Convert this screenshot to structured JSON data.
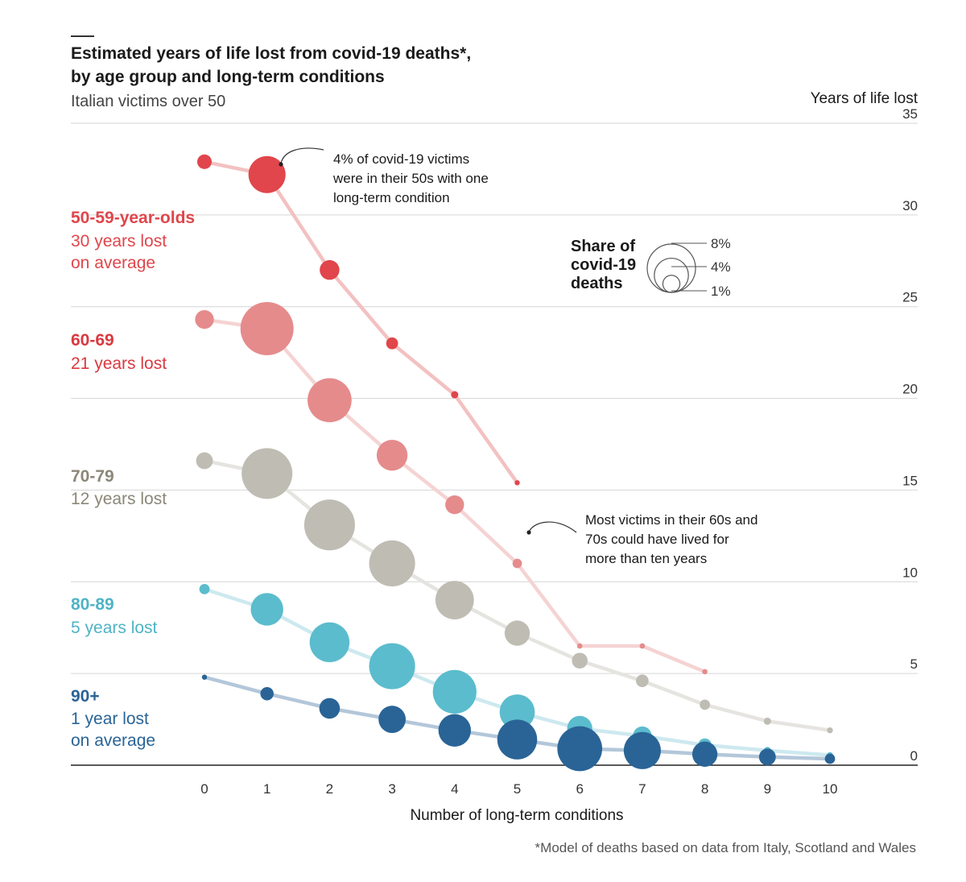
{
  "chart_data": {
    "type": "scatter",
    "title_line1": "Estimated years of life lost from covid-19 deaths*,",
    "title_line2": "by age group and long-term conditions",
    "subtitle": "Italian victims over 50",
    "ylabel": "Years of life lost",
    "xlabel": "Number of long-term conditions",
    "footnote": "*Model of deaths based on data from Italy, Scotland and Wales",
    "ylim": [
      0,
      35
    ],
    "yticks": [
      0,
      5,
      10,
      15,
      20,
      25,
      30,
      35
    ],
    "xticks": [
      0,
      1,
      2,
      3,
      4,
      5,
      6,
      7,
      8,
      9,
      10
    ],
    "grid": "horizontal",
    "series": [
      {
        "name": "50-59-year-olds",
        "note_line1": "30 years lost",
        "note_line2": "on average",
        "color": "#e0464b",
        "line_color": "#f3c1c1",
        "points": [
          {
            "x": 0,
            "y": 32.9,
            "share": 0.6
          },
          {
            "x": 1,
            "y": 32.2,
            "share": 3.9
          },
          {
            "x": 2,
            "y": 27.0,
            "share": 1.1
          },
          {
            "x": 3,
            "y": 23.0,
            "share": 0.4
          },
          {
            "x": 4,
            "y": 20.2,
            "share": 0.15
          },
          {
            "x": 5,
            "y": 15.4,
            "share": 0.03
          }
        ]
      },
      {
        "name": "60-69",
        "note_line1": "21 years lost",
        "note_line2": "",
        "color": "#e58b8c",
        "line_color": "#f5d3d3",
        "points": [
          {
            "x": 0,
            "y": 24.3,
            "share": 1.0
          },
          {
            "x": 1,
            "y": 23.8,
            "share": 8.0
          },
          {
            "x": 2,
            "y": 19.9,
            "share": 5.5
          },
          {
            "x": 3,
            "y": 16.9,
            "share": 2.7
          },
          {
            "x": 4,
            "y": 14.2,
            "share": 1.0
          },
          {
            "x": 5,
            "y": 11.0,
            "share": 0.25
          },
          {
            "x": 6,
            "y": 6.5,
            "share": 0.08
          },
          {
            "x": 7,
            "y": 6.5,
            "share": 0.08
          },
          {
            "x": 8,
            "y": 5.1,
            "share": 0.08
          }
        ]
      },
      {
        "name": "70-79",
        "note_line1": "12 years lost",
        "note_line2": "",
        "color": "#bfbdb3",
        "line_color": "#e5e4e0",
        "points": [
          {
            "x": 0,
            "y": 16.6,
            "share": 0.8
          },
          {
            "x": 1,
            "y": 15.9,
            "share": 7.3
          },
          {
            "x": 2,
            "y": 13.1,
            "share": 7.3
          },
          {
            "x": 3,
            "y": 11.0,
            "share": 6.0
          },
          {
            "x": 4,
            "y": 9.0,
            "share": 4.2
          },
          {
            "x": 5,
            "y": 7.2,
            "share": 1.8
          },
          {
            "x": 6,
            "y": 5.7,
            "share": 0.7
          },
          {
            "x": 7,
            "y": 4.6,
            "share": 0.45
          },
          {
            "x": 8,
            "y": 3.3,
            "share": 0.3
          },
          {
            "x": 9,
            "y": 2.4,
            "share": 0.15
          },
          {
            "x": 10,
            "y": 1.9,
            "share": 0.1
          }
        ]
      },
      {
        "name": "80-89",
        "note_line1": "5 years lost",
        "note_line2": "",
        "color": "#5bbccd",
        "line_color": "#cde9ef",
        "points": [
          {
            "x": 0,
            "y": 9.6,
            "share": 0.3
          },
          {
            "x": 1,
            "y": 8.5,
            "share": 3.0
          },
          {
            "x": 2,
            "y": 6.7,
            "share": 4.5
          },
          {
            "x": 3,
            "y": 5.4,
            "share": 6.0
          },
          {
            "x": 4,
            "y": 4.0,
            "share": 5.4
          },
          {
            "x": 5,
            "y": 2.9,
            "share": 3.5
          },
          {
            "x": 6,
            "y": 2.0,
            "share": 1.8
          },
          {
            "x": 7,
            "y": 1.6,
            "share": 1.0
          },
          {
            "x": 8,
            "y": 1.1,
            "share": 0.5
          },
          {
            "x": 9,
            "y": 0.8,
            "share": 0.15
          },
          {
            "x": 10,
            "y": 0.55,
            "share": 0.1
          }
        ]
      },
      {
        "name": "90+",
        "note_line1": "1 year lost",
        "note_line2": "on average",
        "color": "#2a6496",
        "line_color": "#b3c7da",
        "points": [
          {
            "x": 0,
            "y": 4.8,
            "share": 0.05
          },
          {
            "x": 1,
            "y": 3.9,
            "share": 0.5
          },
          {
            "x": 2,
            "y": 3.1,
            "share": 1.2
          },
          {
            "x": 3,
            "y": 2.5,
            "share": 2.1
          },
          {
            "x": 4,
            "y": 1.9,
            "share": 3.0
          },
          {
            "x": 5,
            "y": 1.4,
            "share": 4.5
          },
          {
            "x": 6,
            "y": 0.9,
            "share": 5.7
          },
          {
            "x": 7,
            "y": 0.8,
            "share": 3.9
          },
          {
            "x": 8,
            "y": 0.6,
            "share": 1.8
          },
          {
            "x": 9,
            "y": 0.45,
            "share": 0.8
          },
          {
            "x": 10,
            "y": 0.35,
            "share": 0.3
          }
        ]
      }
    ],
    "size_legend": {
      "title_line1": "Share of",
      "title_line2": "covid-19",
      "title_line3": "deaths",
      "items": [
        {
          "label": "8%",
          "share": 8
        },
        {
          "label": "4%",
          "share": 4
        },
        {
          "label": "1%",
          "share": 1
        }
      ]
    },
    "annotations": [
      {
        "lines": [
          "4% of covid-19 victims",
          "were in their 50s with one",
          "long-term condition"
        ]
      },
      {
        "lines": [
          "Most victims in their 60s and",
          "70s could have lived for",
          "more than ten years"
        ]
      }
    ]
  }
}
